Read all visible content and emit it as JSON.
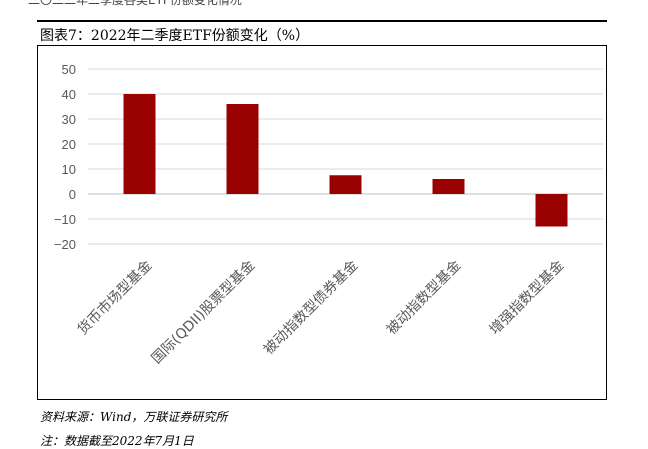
{
  "header_fragment": "二〇二二年二季度各类ETF份额变化情况",
  "title": "图表7：2022年二季度ETF份额变化（%）",
  "source": "资料来源：Wind，万联证券研究所",
  "note": "注：数据截至2022年7月1日",
  "colors": {
    "bar": "#990000",
    "grid": "#d9d9d9",
    "axis": "#bfbfbf",
    "tick_text": "#595959"
  },
  "chart_data": {
    "type": "bar",
    "title": "",
    "xlabel": "",
    "ylabel": "",
    "categories": [
      "货币市场型基金",
      "国际(QDII)股票型基金",
      "被动指数型债券基金",
      "被动指数型基金",
      "增强指数型基金"
    ],
    "values": [
      40,
      36,
      7.5,
      6,
      -13
    ],
    "ylim": [
      -20,
      50
    ],
    "yticks": [
      50,
      40,
      30,
      20,
      10,
      0,
      -10,
      -20
    ],
    "ytick_labels": [
      "50",
      "40",
      "30",
      "20",
      "10",
      "0",
      "−10",
      "−20"
    ],
    "grid": true,
    "legend": "none"
  }
}
